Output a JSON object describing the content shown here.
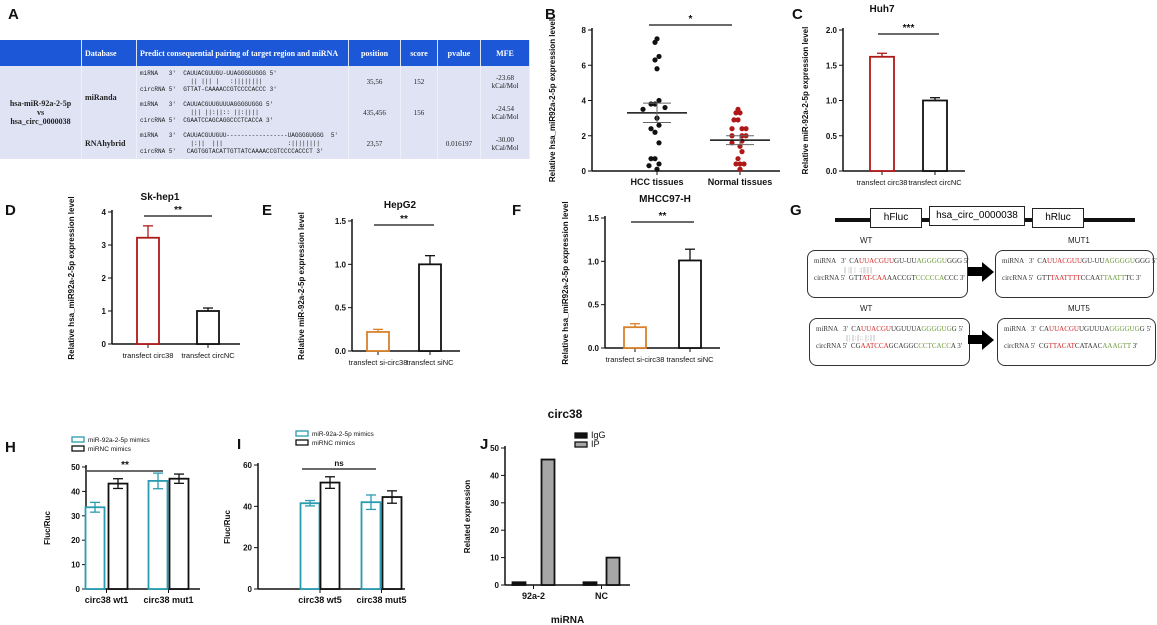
{
  "panel_letters": [
    "A",
    "B",
    "C",
    "D",
    "E",
    "F",
    "G",
    "H",
    "I",
    "J"
  ],
  "table": {
    "headers": [
      "",
      "Database",
      "Predict consequential pairing of target region and miRNA",
      "position",
      "score",
      "pvalue",
      "MFE"
    ],
    "pair_label": [
      "hsa-miR-92a-2-5p",
      "vs",
      "hsa_circ_0000038"
    ],
    "databases": [
      "miRanda",
      "RNAhybrid"
    ],
    "rows": [
      {
        "mirna": "miRNA   3'  CAUUACGUUGU-UUAGGGGUGGG 5'",
        "bonds": "              || ||| |   :||||||||",
        "circ": "circRNA 5'  GTTAT-CAAAACCGTCCCCACCC 3'",
        "position": "35,56",
        "score": "152",
        "pvalue": "",
        "mfe": "-23.68 kCal/Mol"
      },
      {
        "mirna": "miRNA   3'  CAUUACGUUGUUUAGGGGUGGG 5'",
        "bonds": "              ||| ||:||:: ||:||||",
        "circ": "circRNA 5'  CGAATCCAGCAGGCCCTCACCA 3'",
        "position": "435,456",
        "score": "156",
        "pvalue": "",
        "mfe": "-24.54 kCal/Mol"
      },
      {
        "mirna": "miRNA   3'  CAUUACGUUGUU-----------------UAGGGGUGGG  5'",
        "bonds": "              |:||  |||                  :||||||||",
        "circ": "circRNA 5'   CAGTGGTACATTGTTATCAAAACCGTCCCCACCCT 3'",
        "position": "23,57",
        "score": "",
        "pvalue": "0.016197",
        "mfe": "-30.00 kCal/Mol"
      }
    ]
  },
  "construct": {
    "boxes": [
      "hFluc",
      "hsa_circ_0000038",
      "hRluc"
    ]
  },
  "mutants": [
    {
      "wt_label": "WT",
      "mut_label": "MUT1",
      "wt_mirna": [
        [
          "miRNA   3'  CA",
          "k"
        ],
        [
          "UUACGUU",
          "r"
        ],
        [
          "GU-UU",
          "k"
        ],
        [
          "AGGGGU",
          "gr"
        ],
        [
          "GGG 5'",
          "k"
        ]
      ],
      "bonds": "                 || ||| |  :||||||||",
      "wt_circ": [
        [
          "circRNA 5'  GTT",
          "k"
        ],
        [
          "AT-CAA",
          "r"
        ],
        [
          "AACCGT",
          "k"
        ],
        [
          "CCCCCA",
          "gr"
        ],
        [
          "CCC 3'",
          "k"
        ]
      ],
      "mut_mirna": [
        [
          "miRNA   3'  CA",
          "k"
        ],
        [
          "UUACGUU",
          "r"
        ],
        [
          "GU-UU",
          "k"
        ],
        [
          "AGGGGU",
          "gr"
        ],
        [
          "GGG 5'",
          "k"
        ]
      ],
      "mut_circ": [
        [
          "circRNA 5'  GTT",
          "k"
        ],
        [
          "TAATTTT",
          "r"
        ],
        [
          "CCAA",
          "k"
        ],
        [
          "TTAATT",
          "gr"
        ],
        [
          "TC 3'",
          "k"
        ]
      ]
    },
    {
      "wt_label": "WT",
      "mut_label": "MUT5",
      "wt_mirna": [
        [
          "miRNA   3'  CA",
          "k"
        ],
        [
          "UUACGU",
          "r"
        ],
        [
          "UGUUUA",
          "k"
        ],
        [
          "GGGGUG",
          "gr"
        ],
        [
          "G 5'",
          "k"
        ]
      ],
      "bonds": "                 ||| ||:||:: ||:||||",
      "wt_circ": [
        [
          "circRNA 5'  CG",
          "k"
        ],
        [
          "AATCCA",
          "r"
        ],
        [
          "GCAGGC",
          "k"
        ],
        [
          "CCTCACC",
          "gr"
        ],
        [
          "A 3'",
          "k"
        ]
      ],
      "mut_mirna": [
        [
          "miRNA   3'  CA",
          "k"
        ],
        [
          "UUACGU",
          "r"
        ],
        [
          "UGUUUA",
          "k"
        ],
        [
          "GGGGUG",
          "gr"
        ],
        [
          "G 5'",
          "k"
        ]
      ],
      "mut_circ": [
        [
          "circRNA 5'  CG",
          "k"
        ],
        [
          "TTACAT",
          "r"
        ],
        [
          "CATAAC",
          "k"
        ],
        [
          "AAAGTT",
          "gr"
        ],
        [
          " 3'",
          "k"
        ]
      ]
    }
  ],
  "chart_data": [
    {
      "panel": "B",
      "type": "scatter",
      "title": "",
      "ylabel": "Relative  hsa_miR92a-2-5p expression level",
      "ylim": [
        0,
        8
      ],
      "yticks": [
        "0",
        "2",
        "4",
        "6",
        "8"
      ],
      "categories": [
        "HCC tissues",
        "Normal tissues"
      ],
      "significance": "*",
      "groups": [
        {
          "color": "#111111",
          "points": [
            7.3,
            7.5,
            6.5,
            6.3,
            5.8,
            4.0,
            3.8,
            3.8,
            3.6,
            3.5,
            3.0,
            2.6,
            2.2,
            2.4,
            1.6,
            0.7,
            0.7,
            0.4,
            0.3,
            0.1
          ],
          "mean": 3.3,
          "sem": 0.55
        },
        {
          "color": "#b01818",
          "points": [
            3.5,
            3.3,
            3.3,
            2.9,
            2.9,
            2.4,
            2.4,
            2.4,
            2.0,
            2.0,
            2.0,
            1.7,
            1.6,
            1.4,
            1.1,
            0.7,
            0.4,
            0.4,
            0.4,
            0.1
          ],
          "mean": 1.75,
          "sem": 0.25
        }
      ]
    },
    {
      "panel": "C",
      "type": "bar",
      "title": "Huh7",
      "ylabel": "Relative miR-92a-2-5p expression level",
      "ylim": [
        0,
        2.0
      ],
      "yticks": [
        "0.0",
        "0.5",
        "1.0",
        "1.5",
        "2.0"
      ],
      "categories": [
        "transfect circ38",
        "transfect circNC"
      ],
      "values": [
        1.62,
        1.0
      ],
      "errors": [
        0.05,
        0.04
      ],
      "colors": [
        "#b01818",
        "#111111"
      ],
      "significance": "***"
    },
    {
      "panel": "D",
      "type": "bar",
      "title": "Sk-hep1",
      "ylabel": "Relative hsa_miR92a-2-5p expression level",
      "ylim": [
        0,
        4
      ],
      "yticks": [
        "0",
        "1",
        "2",
        "3",
        "4"
      ],
      "categories": [
        "transfect circ38",
        "transfect circNC"
      ],
      "values": [
        3.22,
        1.0
      ],
      "errors": [
        0.36,
        0.09
      ],
      "colors": [
        "#b01818",
        "#111111"
      ],
      "significance": "**"
    },
    {
      "panel": "E",
      "type": "bar",
      "title": "HepG2",
      "ylabel": "Relative miR-92a-2-5p expression level",
      "ylim": [
        0,
        1.5
      ],
      "yticks": [
        "0.0",
        "0.5",
        "1.0",
        "1.5"
      ],
      "categories": [
        "transfect si-circ38",
        "transfect siNC"
      ],
      "values": [
        0.22,
        1.0
      ],
      "errors": [
        0.03,
        0.1
      ],
      "colors": [
        "#d9822b",
        "#111111"
      ],
      "significance": "**"
    },
    {
      "panel": "F",
      "type": "bar",
      "title": "MHCC97-H",
      "ylabel": "Relative hsa_miR92a-2-5p expression level",
      "ylim": [
        0,
        1.5
      ],
      "yticks": [
        "0.0",
        "0.5",
        "1.0",
        "1.5"
      ],
      "categories": [
        "transfect si-circ38",
        "transfect siNC"
      ],
      "values": [
        0.24,
        1.01
      ],
      "errors": [
        0.04,
        0.13
      ],
      "colors": [
        "#d9822b",
        "#111111"
      ],
      "significance": "**"
    },
    {
      "panel": "H",
      "type": "grouped-bar",
      "title": "",
      "ylabel": "Fluc/Ruc",
      "ylim": [
        0,
        50
      ],
      "yticks": [
        "0",
        "10",
        "20",
        "30",
        "40",
        "50"
      ],
      "categories": [
        "circ38 wt1",
        "circ38 mut1"
      ],
      "significance": "**",
      "legend": "top-left",
      "series": [
        {
          "name": "miR-92a-2-5p mimics",
          "values": [
            33.5,
            44.3
          ],
          "errors": [
            2.0,
            3.2
          ],
          "color": "#2a9bb0",
          "fill": "#ffffff"
        },
        {
          "name": "miRNC mimics",
          "values": [
            43.2,
            45.2
          ],
          "errors": [
            2.0,
            1.9
          ],
          "color": "#111111",
          "fill": "#ffffff"
        }
      ]
    },
    {
      "panel": "I",
      "type": "grouped-bar",
      "title": "",
      "ylabel": "Fluc/Ruc",
      "ylim": [
        0,
        60
      ],
      "yticks": [
        "0",
        "20",
        "40",
        "60"
      ],
      "categories": [
        "circ38 wt5",
        "circ38 mut5"
      ],
      "significance": "ns",
      "legend": "top-left",
      "series": [
        {
          "name": "miR-92a-2-5p mimics",
          "values": [
            41.5,
            42.0
          ],
          "errors": [
            1.3,
            3.5
          ],
          "color": "#2a9bb0",
          "fill": "#ffffff"
        },
        {
          "name": "miRNC mimics",
          "values": [
            51.5,
            44.5
          ],
          "errors": [
            2.8,
            3.0
          ],
          "color": "#111111",
          "fill": "#ffffff"
        }
      ]
    },
    {
      "panel": "J",
      "type": "grouped-bar",
      "title": "circ38",
      "ylabel": "Related expression",
      "xlabel": "miRNA",
      "ylim": [
        0,
        50
      ],
      "yticks": [
        "0",
        "10",
        "20",
        "30",
        "40",
        "50"
      ],
      "categories": [
        "92a-2",
        "NC"
      ],
      "significance": "",
      "legend": "top-right",
      "series": [
        {
          "name": "IgG",
          "values": [
            1.0,
            1.0
          ],
          "color": "#111111",
          "fill": "#111111"
        },
        {
          "name": "IP",
          "values": [
            45.8,
            10.0
          ],
          "color": "#111111",
          "fill": "#a6a6a6"
        }
      ]
    }
  ]
}
